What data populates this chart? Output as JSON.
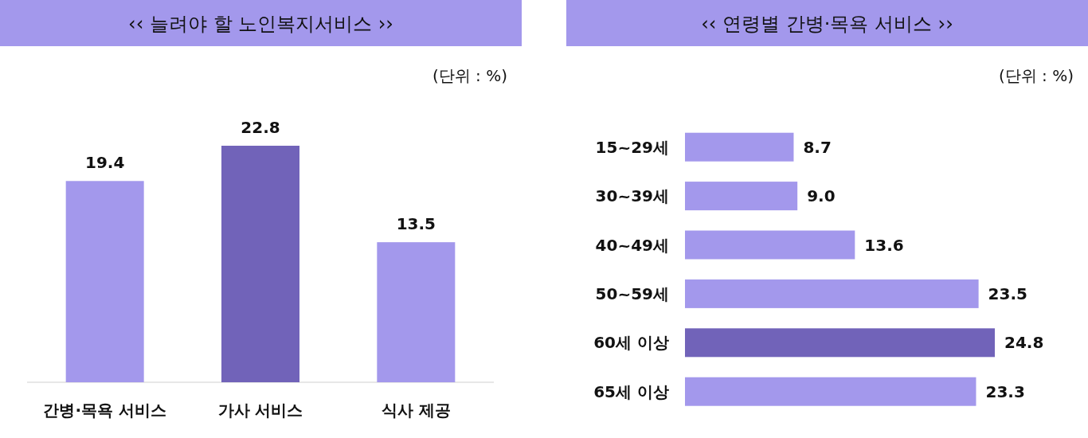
{
  "chart_data": [
    {
      "type": "bar",
      "title": "‹‹ 늘려야 할 노인복지서비스 ››",
      "annotations": [
        "(단위 : %)"
      ],
      "categories": [
        "간병·목욕 서비스",
        "가사 서비스",
        "식사 제공"
      ],
      "values": [
        19.4,
        22.8,
        13.5
      ],
      "colors": [
        "#a398ec",
        "#7163b9",
        "#a398ec"
      ],
      "data_labels": true
    },
    {
      "type": "bar",
      "orientation": "horizontal",
      "title": "‹‹ 연령별 간병·목욕 서비스 ››",
      "annotations": [
        "(단위 : %)"
      ],
      "categories": [
        "15~29세",
        "30~39세",
        "40~49세",
        "50~59세",
        "60세 이상",
        "65세 이상"
      ],
      "values": [
        8.7,
        9.0,
        13.6,
        23.5,
        24.8,
        23.3
      ],
      "colors": [
        "#a398ec",
        "#a398ec",
        "#a398ec",
        "#a398ec",
        "#7163b9",
        "#a398ec"
      ],
      "value_labels": [
        "8.7",
        "9.0",
        "13.6",
        "23.5",
        "24.8",
        "23.3"
      ]
    }
  ]
}
